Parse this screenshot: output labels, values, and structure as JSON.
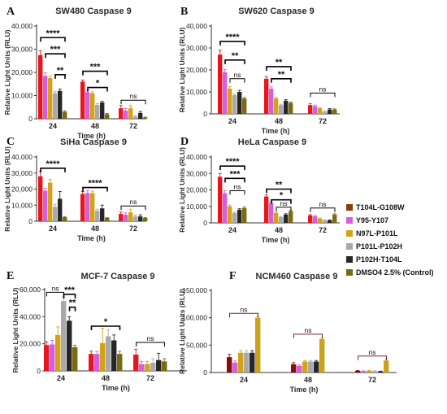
{
  "chart_data": [
    {
      "type": "bar",
      "panel_letter": "A",
      "title": "SW480 Caspase 9",
      "xlabel": "Time (h)",
      "ylabel": "Relative Light Units  (RLU)",
      "ylim": [
        0,
        40000
      ],
      "yticks": [
        0,
        10000,
        20000,
        30000,
        40000
      ],
      "ytick_labels": [
        "0",
        "10,000",
        "20,000",
        "30,000",
        "40,000"
      ],
      "categories": [
        "24",
        "48",
        "72"
      ],
      "series": [
        {
          "name": "T104L-G108W",
          "values": [
            27500,
            16000,
            4500
          ]
        },
        {
          "name": "Y95-Y107",
          "values": [
            18500,
            11500,
            3500
          ]
        },
        {
          "name": "N97L-P101L",
          "values": [
            17500,
            11000,
            4500
          ]
        },
        {
          "name": "P101L-P102H",
          "values": [
            11000,
            6000,
            1000
          ]
        },
        {
          "name": "P102H-T104L",
          "values": [
            12000,
            7000,
            2500
          ]
        },
        {
          "name": "DMSO4 2.5% (Control)",
          "values": [
            3000,
            2000,
            500
          ]
        }
      ],
      "errors": [
        [
          1800,
          700,
          1200
        ],
        [
          1300,
          700,
          900
        ],
        [
          1000,
          600,
          1200
        ],
        [
          700,
          500,
          400
        ],
        [
          800,
          500,
          600
        ],
        [
          400,
          300,
          200
        ]
      ],
      "significance": [
        {
          "label": "****",
          "cat": 0,
          "from": 0,
          "to": 5,
          "level": 35000
        },
        {
          "label": "***",
          "cat": 0,
          "from": 1,
          "to": 5,
          "level": 28000
        },
        {
          "label": "**",
          "cat": 0,
          "from": 3,
          "to": 5,
          "level": 19000
        },
        {
          "label": "***",
          "cat": 1,
          "from": 0,
          "to": 5,
          "level": 20500
        },
        {
          "label": "*",
          "cat": 1,
          "from": 1,
          "to": 5,
          "level": 13500
        },
        {
          "label": "ns",
          "cat": 2,
          "from": 0,
          "to": 5,
          "level": 8000
        }
      ]
    },
    {
      "type": "bar",
      "panel_letter": "B",
      "title": "SW620 Caspase 9",
      "xlabel": "Time (h)",
      "ylabel": "Relative Light Units  (RLU)",
      "ylim": [
        0,
        40000
      ],
      "yticks": [
        0,
        10000,
        20000,
        30000,
        40000
      ],
      "ytick_labels": [
        "0",
        "10,000",
        "20,000",
        "30,000",
        "40,000"
      ],
      "categories": [
        "24",
        "48",
        "72"
      ],
      "series": [
        {
          "name": "T104L-G108W",
          "values": [
            27000,
            16000,
            4000
          ]
        },
        {
          "name": "Y95-Y107",
          "values": [
            19000,
            11500,
            3500
          ]
        },
        {
          "name": "N97L-P101L",
          "values": [
            11500,
            7000,
            2500
          ]
        },
        {
          "name": "P101L-P102H",
          "values": [
            8500,
            4000,
            1000
          ]
        },
        {
          "name": "P102H-T104L",
          "values": [
            10000,
            6000,
            2000
          ]
        },
        {
          "name": "DMSO4 2.5% (Control)",
          "values": [
            7000,
            5000,
            2000
          ]
        }
      ],
      "errors": [
        [
          2000,
          1000,
          600
        ],
        [
          1200,
          800,
          500
        ],
        [
          900,
          600,
          400
        ],
        [
          600,
          400,
          300
        ],
        [
          700,
          500,
          400
        ],
        [
          500,
          400,
          300
        ]
      ],
      "significance": [
        {
          "label": "****",
          "cat": 0,
          "from": 0,
          "to": 5,
          "level": 33000
        },
        {
          "label": "**",
          "cat": 0,
          "from": 1,
          "to": 5,
          "level": 24500
        },
        {
          "label": "ns",
          "cat": 0,
          "from": 2,
          "to": 5,
          "level": 16000
        },
        {
          "label": "**",
          "cat": 1,
          "from": 0,
          "to": 5,
          "level": 21500
        },
        {
          "label": "**",
          "cat": 1,
          "from": 1,
          "to": 5,
          "level": 16000
        },
        {
          "label": "ns",
          "cat": 2,
          "from": 0,
          "to": 5,
          "level": 9500
        }
      ]
    },
    {
      "type": "bar",
      "panel_letter": "C",
      "title": "SiHa Caspase 9",
      "xlabel": "Time (h)",
      "ylabel": "Relative Light Units  (RLU)",
      "ylim": [
        0,
        40000
      ],
      "yticks": [
        0,
        10000,
        20000,
        30000,
        40000
      ],
      "ytick_labels": [
        "0",
        "10,000",
        "20,000",
        "30,000",
        "40,000"
      ],
      "categories": [
        "24",
        "48",
        "72"
      ],
      "series": [
        {
          "name": "T104L-G108W",
          "values": [
            28000,
            17000,
            4500
          ]
        },
        {
          "name": "Y95-Y107",
          "values": [
            19000,
            17500,
            4000
          ]
        },
        {
          "name": "N97L-P101L",
          "values": [
            24000,
            17500,
            5500
          ]
        },
        {
          "name": "P101L-P102H",
          "values": [
            9000,
            6500,
            3000
          ]
        },
        {
          "name": "P102H-T104L",
          "values": [
            14000,
            8000,
            3000
          ]
        },
        {
          "name": "DMSO4 2.5% (Control)",
          "values": [
            2500,
            2000,
            2000
          ]
        }
      ],
      "errors": [
        [
          3000,
          1500,
          1200
        ],
        [
          1500,
          1500,
          1200
        ],
        [
          2000,
          1200,
          2000
        ],
        [
          1500,
          1000,
          800
        ],
        [
          4500,
          2000,
          1000
        ],
        [
          400,
          300,
          300
        ]
      ],
      "significance": [
        {
          "label": "****",
          "cat": 0,
          "from": 0,
          "to": 5,
          "level": 33000
        },
        {
          "label": "****",
          "cat": 1,
          "from": 0,
          "to": 5,
          "level": 21000
        },
        {
          "label": "ns",
          "cat": 2,
          "from": 0,
          "to": 5,
          "level": 9500
        }
      ]
    },
    {
      "type": "bar",
      "panel_letter": "D",
      "title": "HeLa Caspase 9",
      "xlabel": "Time (h)",
      "ylabel": "Relative Light Units  (RLU)",
      "ylim": [
        0,
        40000
      ],
      "yticks": [
        0,
        10000,
        20000,
        30000,
        40000
      ],
      "ytick_labels": [
        "0",
        "10,000",
        "20,000",
        "30,000",
        "40,000"
      ],
      "categories": [
        "24",
        "48",
        "72"
      ],
      "series": [
        {
          "name": "T104L-G108W",
          "values": [
            28000,
            16000,
            4500
          ]
        },
        {
          "name": "Y95-Y107",
          "values": [
            18000,
            12000,
            4000
          ]
        },
        {
          "name": "N97L-P101L",
          "values": [
            10000,
            6000,
            2500
          ]
        },
        {
          "name": "P101L-P102H",
          "values": [
            6000,
            3500,
            1500
          ]
        },
        {
          "name": "P102H-T104L",
          "values": [
            8000,
            5000,
            1500
          ]
        },
        {
          "name": "DMSO4 2.5% (Control)",
          "values": [
            9000,
            7000,
            5000
          ]
        }
      ],
      "errors": [
        [
          2000,
          1000,
          500
        ],
        [
          1500,
          800,
          500
        ],
        [
          800,
          500,
          400
        ],
        [
          500,
          400,
          300
        ],
        [
          600,
          500,
          300
        ],
        [
          700,
          600,
          500
        ]
      ],
      "significance": [
        {
          "label": "****",
          "cat": 0,
          "from": 0,
          "to": 5,
          "level": 34500
        },
        {
          "label": "***",
          "cat": 0,
          "from": 1,
          "to": 5,
          "level": 27000
        },
        {
          "label": "ns",
          "cat": 0,
          "from": 2,
          "to": 5,
          "level": 19500
        },
        {
          "label": "**",
          "cat": 1,
          "from": 0,
          "to": 5,
          "level": 20500
        },
        {
          "label": "*",
          "cat": 1,
          "from": 1,
          "to": 5,
          "level": 14000
        },
        {
          "label": "ns",
          "cat": 1,
          "from": 2,
          "to": 5,
          "level": 9500
        },
        {
          "label": "ns",
          "cat": 2,
          "from": 0,
          "to": 5,
          "level": 9000
        }
      ]
    },
    {
      "type": "bar",
      "panel_letter": "E",
      "title": "MCF-7 Caspase 9",
      "xlabel": "Time (h)",
      "ylabel": "Relative Light Units (RLU)",
      "ylim": [
        0,
        60000
      ],
      "yticks": [
        0,
        20000,
        40000,
        60000
      ],
      "ytick_labels": [
        "0",
        "20,000",
        "40,000",
        "60,000"
      ],
      "categories": [
        "24",
        "48",
        "72"
      ],
      "series": [
        {
          "name": "T104L-G108W",
          "values": [
            19000,
            12500,
            12000
          ]
        },
        {
          "name": "Y95-Y107",
          "values": [
            19500,
            12500,
            5000
          ]
        },
        {
          "name": "N97L-P101L",
          "values": [
            26500,
            20500,
            5000
          ]
        },
        {
          "name": "P101L-P102H",
          "values": [
            51500,
            25500,
            6000
          ]
        },
        {
          "name": "P102H-T104L",
          "values": [
            37000,
            22500,
            8000
          ]
        },
        {
          "name": "DMSO4 2.5% (Control)",
          "values": [
            17500,
            12500,
            7000
          ]
        }
      ],
      "errors": [
        [
          2500,
          2000,
          4000
        ],
        [
          3000,
          2000,
          2000
        ],
        [
          6000,
          11000,
          2000
        ],
        [
          3000,
          5000,
          3000
        ],
        [
          3000,
          4000,
          5000
        ],
        [
          1500,
          2000,
          2000
        ]
      ],
      "significance": [
        {
          "label": "ns",
          "cat": 0,
          "from": 0,
          "to": 3,
          "level": 58000
        },
        {
          "label": "***",
          "cat": 0,
          "from": 3,
          "to": 5,
          "level": 56500
        },
        {
          "label": "**",
          "cat": 0,
          "from": 4,
          "to": 5,
          "level": 47000
        },
        {
          "label": "*",
          "cat": 1,
          "from": 0,
          "to": 5,
          "level": 33000
        },
        {
          "label": "ns",
          "cat": 2,
          "from": 0,
          "to": 5,
          "level": 21000
        }
      ]
    },
    {
      "type": "bar",
      "panel_letter": "F",
      "title": "NCM460 Caspase 9",
      "xlabel": "Time (h)",
      "ylabel": "Relative Light Units (RLU)",
      "ylim": [
        0,
        150000
      ],
      "yticks": [
        0,
        50000,
        100000,
        150000
      ],
      "ytick_labels": [
        "0",
        "50,000",
        "100,000",
        "150,000"
      ],
      "categories": [
        "24",
        "48",
        "72"
      ],
      "series": [
        {
          "name": "T104L-G108W",
          "values": [
            28000,
            15000,
            3000
          ]
        },
        {
          "name": "Y95-Y107",
          "values": [
            18000,
            12000,
            2500
          ]
        },
        {
          "name": "N97L-P101L",
          "values": [
            36000,
            20000,
            3000
          ]
        },
        {
          "name": "P101L-P102H",
          "values": [
            36000,
            20000,
            2500
          ]
        },
        {
          "name": "P102H-T104L",
          "values": [
            36000,
            20000,
            2000
          ]
        },
        {
          "name": "DMSO4 2.5% (Control)",
          "values": [
            100000,
            61000,
            22000
          ]
        }
      ],
      "errors": [
        [
          5000,
          3000,
          800
        ],
        [
          3000,
          2000,
          600
        ],
        [
          4000,
          2000,
          600
        ],
        [
          4000,
          2000,
          500
        ],
        [
          4000,
          2000,
          500
        ],
        [
          3000,
          2000,
          3000
        ]
      ],
      "significance": [
        {
          "label": "ns",
          "cat": 0,
          "from": 0,
          "to": 5,
          "level": 108000
        },
        {
          "label": "ns",
          "cat": 1,
          "from": 0,
          "to": 5,
          "level": 70000
        },
        {
          "label": "ns",
          "cat": 2,
          "from": 0,
          "to": 5,
          "level": 30000
        }
      ]
    }
  ],
  "legend": {
    "placement": "right",
    "entries": [
      {
        "name": "T104L-G108W",
        "color": "#8b3a0a"
      },
      {
        "name": "Y95-Y107",
        "color": "#d45ee0"
      },
      {
        "name": "N97L-P101L",
        "color": "#d4a216"
      },
      {
        "name": "P101L-P102H",
        "color": "#a9a9a9"
      },
      {
        "name": "P102H-T104L",
        "color": "#262626"
      },
      {
        "name": "DMSO4 2.5% (Control)",
        "color": "#7a6a12"
      }
    ]
  },
  "panel_bar_colors": {
    "ABCDE": [
      "#e8141f",
      "#d45ee0",
      "#d4a216",
      "#a9a9a9",
      "#262626",
      "#7a6a12"
    ],
    "F": [
      "#8b0a0a",
      "#d45ee0",
      "#d4a216",
      "#a9a9a9",
      "#262626",
      "#c8a21a"
    ]
  },
  "highlight_colors": {
    "title_and_axis_text": "#2b2b2b",
    "significance_bracket": "#000000",
    "ns_bracket_F": "#7a1a3a"
  }
}
